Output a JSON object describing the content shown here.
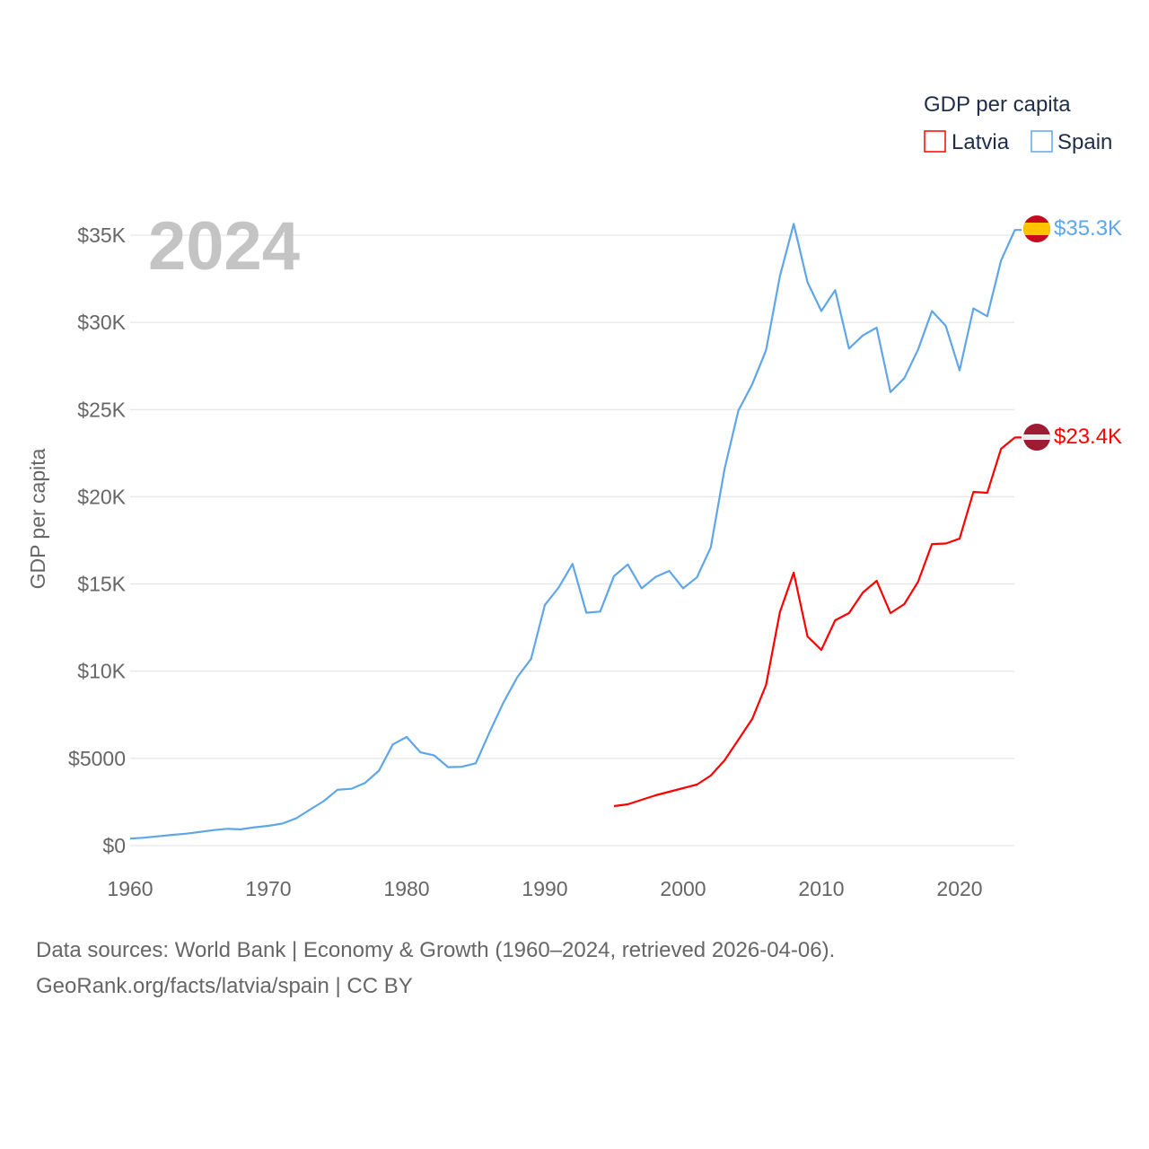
{
  "chart_data": {
    "type": "line",
    "title": "GDP per capita",
    "year_label": "2024",
    "ylabel": "GDP per capita",
    "xlabel": "",
    "xlim": [
      1960,
      2024
    ],
    "ylim": [
      0,
      35000
    ],
    "x_ticks": [
      1960,
      1970,
      1980,
      1990,
      2000,
      2010,
      2020
    ],
    "x_tick_labels": [
      "1960",
      "1970",
      "1980",
      "1990",
      "2000",
      "2010",
      "2020"
    ],
    "y_ticks": [
      0,
      5000,
      10000,
      15000,
      20000,
      25000,
      30000,
      35000
    ],
    "y_tick_labels": [
      "$0",
      "$5000",
      "$10K",
      "$15K",
      "$20K",
      "$25K",
      "$30K",
      "$35K"
    ],
    "grid": true,
    "legend_position": "top-right",
    "series": [
      {
        "name": "Latvia",
        "color": "#ff0000",
        "end_label": "$23.4K",
        "flag": "latvia-flag",
        "x_start": 1995,
        "values": [
          2265,
          2370,
          2625,
          2880,
          3090,
          3295,
          3500,
          4015,
          4890,
          6075,
          7260,
          9215,
          13380,
          15650,
          11990,
          11220,
          12920,
          13330,
          14510,
          15180,
          13330,
          13845,
          15130,
          17290,
          17320,
          17600,
          20280,
          20230,
          22750,
          23400
        ]
      },
      {
        "name": "Spain",
        "color": "#5ea6e8",
        "end_label": "$35.3K",
        "flag": "spain-flag",
        "x_start": 1960,
        "values": [
          400,
          455,
          530,
          615,
          680,
          775,
          885,
          960,
          930,
          1050,
          1130,
          1260,
          1560,
          2060,
          2550,
          3200,
          3260,
          3600,
          4300,
          5800,
          6230,
          5350,
          5170,
          4500,
          4520,
          4720,
          6500,
          8200,
          9650,
          10700,
          13800,
          14800,
          16150,
          13350,
          13420,
          15450,
          16120,
          14750,
          15400,
          15750,
          14750,
          15380,
          17100,
          21600,
          24950,
          26450,
          28400,
          32650,
          35650,
          32300,
          30650,
          31850,
          28500,
          29250,
          29700,
          26000,
          26800,
          28450,
          30650,
          29800,
          27250,
          30800,
          30350,
          33550,
          35300
        ]
      }
    ]
  },
  "legend": {
    "title": "GDP per capita",
    "items": [
      "Latvia",
      "Spain"
    ]
  },
  "footer": {
    "line1": "Data sources: World Bank | Economy & Growth (1960–2024, retrieved 2026-04-06).",
    "line2": "GeoRank.org/facts/latvia/spain | CC BY"
  }
}
